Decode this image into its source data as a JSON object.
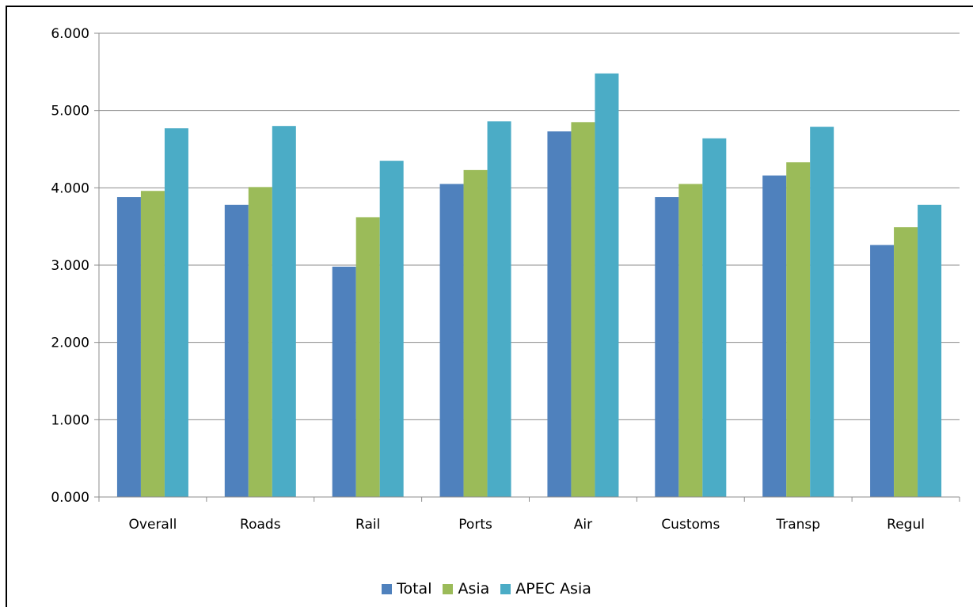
{
  "chart_data": {
    "type": "bar",
    "title": "",
    "xlabel": "",
    "ylabel": "",
    "categories": [
      "Overall",
      "Roads",
      "Rail",
      "Ports",
      "Air",
      "Customs",
      "Transp",
      "Regul"
    ],
    "series": [
      {
        "name": "Total",
        "color": "#4F81BD",
        "values": [
          3.88,
          3.78,
          2.98,
          4.05,
          4.73,
          3.88,
          4.16,
          3.26
        ]
      },
      {
        "name": "Asia",
        "color": "#9BBB59",
        "values": [
          3.96,
          4.01,
          3.62,
          4.23,
          4.85,
          4.05,
          4.33,
          3.49
        ]
      },
      {
        "name": "APEC Asia",
        "color": "#4BACC6",
        "values": [
          4.77,
          4.8,
          4.35,
          4.86,
          5.48,
          4.64,
          4.79,
          3.78
        ]
      }
    ],
    "ylim": [
      0,
      6
    ],
    "yticks": [
      "0.000",
      "1.000",
      "2.000",
      "3.000",
      "4.000",
      "5.000",
      "6.000"
    ],
    "grid": true,
    "legend_position": "bottom"
  }
}
